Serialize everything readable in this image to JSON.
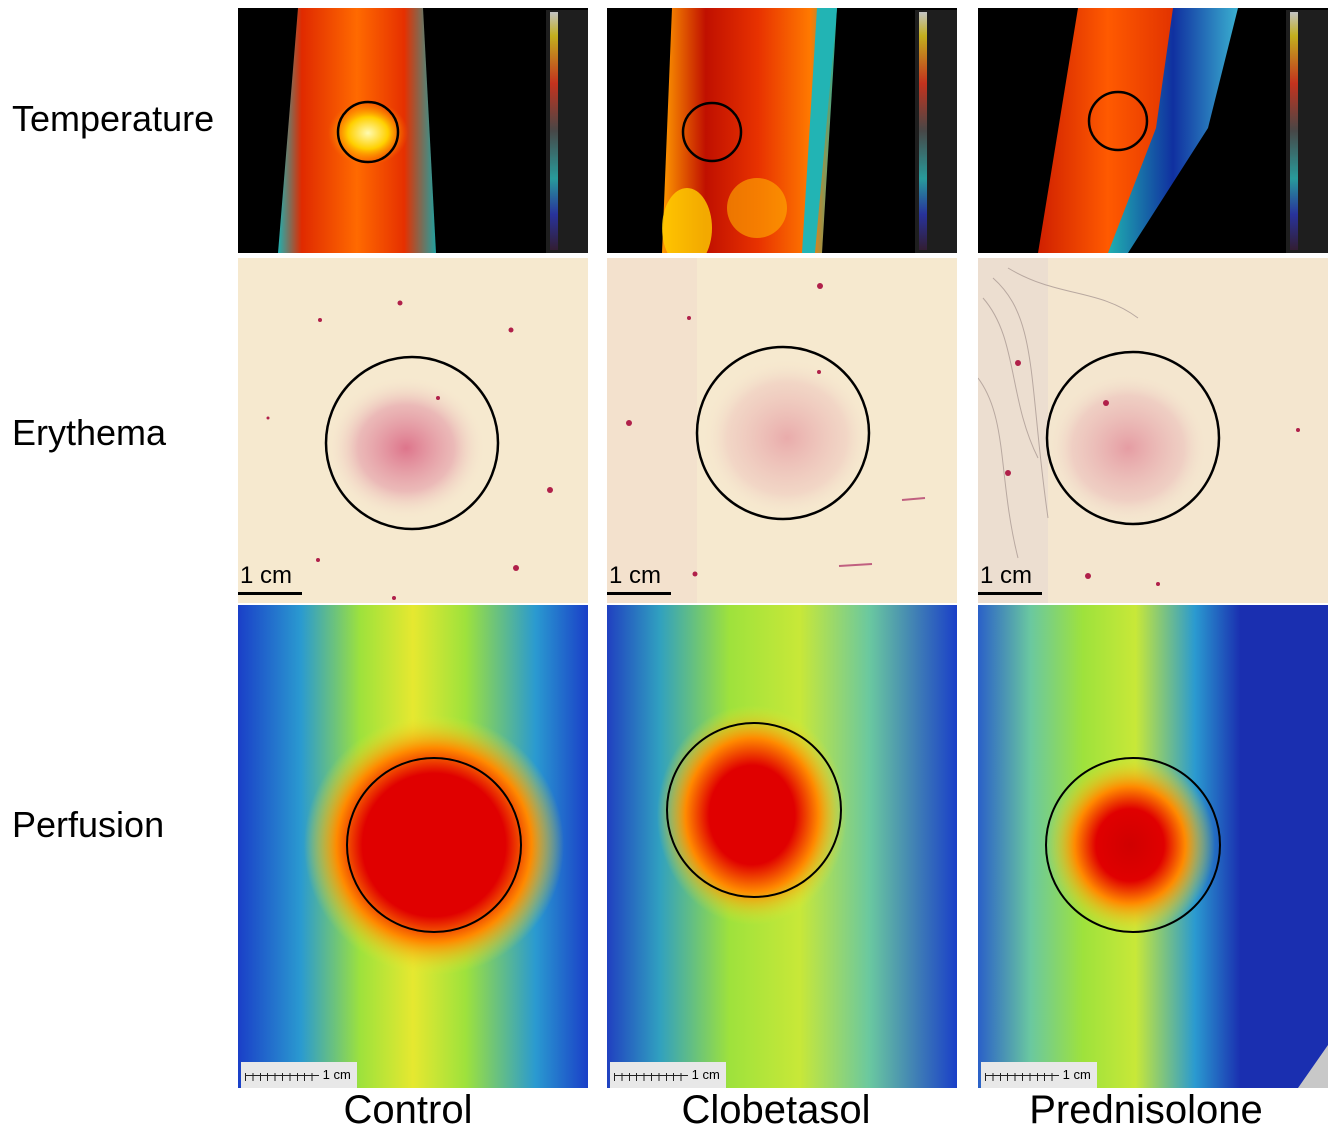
{
  "rows": {
    "temperature": "Temperature",
    "erythema": "Erythema",
    "perfusion": "Perfusion"
  },
  "columns": {
    "control": "Control",
    "clobetasol": "Clobetasol",
    "prednisolone": "Prednisolone"
  },
  "scale_bar_label": "1 cm",
  "colors": {
    "thermal_background": "#000000",
    "thermal_hot": "#ff3300",
    "thermal_cool": "#22b4b4",
    "erythema_skin": "#f6e9cf",
    "erythema_red": "#d9607f",
    "perfusion_low": "#1a3fc8",
    "perfusion_mid": "#9ee23c",
    "perfusion_high": "#e00000",
    "roi_circle": "#000000"
  }
}
